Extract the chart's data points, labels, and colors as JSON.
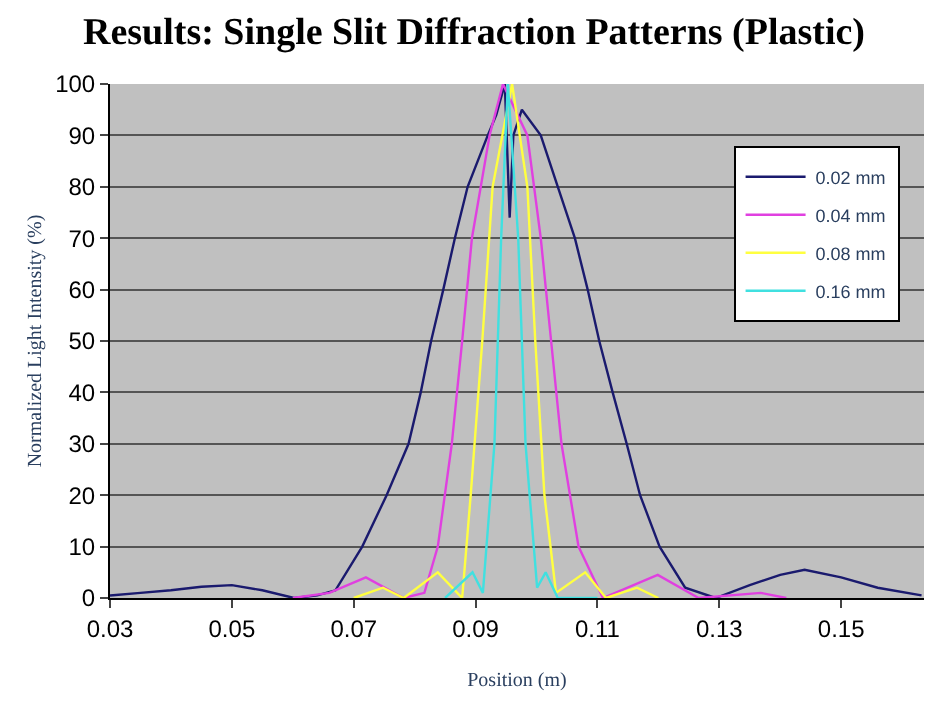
{
  "chart_data": {
    "type": "line",
    "title": "Results: Single Slit Diffraction Patterns (Plastic)",
    "xlabel": "Position (m)",
    "ylabel": "Normalized Light Intensity (%)",
    "xlim": [
      0.03,
      0.1636
    ],
    "xticks": [
      {
        "value": 0.03,
        "label": "0.03"
      },
      {
        "value": 0.05,
        "label": "0.05"
      },
      {
        "value": 0.07,
        "label": "0.07"
      },
      {
        "value": 0.09,
        "label": "0.09"
      },
      {
        "value": 0.11,
        "label": "0.11"
      },
      {
        "value": 0.13,
        "label": "0.13"
      },
      {
        "value": 0.15,
        "label": "0.15"
      }
    ],
    "ylim": [
      0,
      100
    ],
    "yticks": [
      0,
      10,
      20,
      30,
      40,
      50,
      60,
      70,
      80,
      90,
      100
    ],
    "grid": "y",
    "legend": "top right",
    "marker": "none",
    "line_style": "solid",
    "series": [
      {
        "name": "0.02 mm",
        "color": "#1a1a6e",
        "x": [
          0.03,
          0.035,
          0.04,
          0.045,
          0.05,
          0.055,
          0.0602,
          0.064,
          0.067,
          0.0714,
          0.0754,
          0.079,
          0.081,
          0.0827,
          0.0847,
          0.0866,
          0.0887,
          0.092,
          0.0934,
          0.0948,
          0.0956,
          0.0962,
          0.0976,
          0.1007,
          0.1035,
          0.1063,
          0.1084,
          0.1103,
          0.1125,
          0.1148,
          0.117,
          0.1202,
          0.1244,
          0.1294,
          0.135,
          0.14,
          0.144,
          0.15,
          0.156,
          0.1632
        ],
        "values": [
          0.5,
          1,
          1.5,
          2.2,
          2.5,
          1.5,
          0,
          0.5,
          1.5,
          10,
          20,
          30,
          40,
          50,
          60,
          70,
          80,
          90,
          94,
          100,
          74,
          90,
          95,
          90,
          80,
          70,
          60,
          50,
          40,
          30,
          20,
          10,
          2,
          0,
          2.5,
          4.5,
          5.5,
          4,
          2,
          0.5
        ]
      },
      {
        "name": "0.04 mm",
        "color": "#e040e0",
        "x": [
          0.06,
          0.066,
          0.072,
          0.0782,
          0.0816,
          0.0838,
          0.0861,
          0.0878,
          0.0894,
          0.0923,
          0.0945,
          0.0985,
          0.1007,
          0.1024,
          0.1041,
          0.1069,
          0.1109,
          0.1199,
          0.1266,
          0.1368,
          0.141
        ],
        "values": [
          0,
          1,
          4,
          0,
          1,
          10,
          30,
          50,
          70,
          90,
          100,
          90,
          70,
          50,
          30,
          10,
          0,
          4.5,
          0,
          1,
          0
        ]
      },
      {
        "name": "0.08 mm",
        "color": "#ffff40",
        "x": [
          0.07,
          0.0748,
          0.0782,
          0.0838,
          0.0878,
          0.0892,
          0.0911,
          0.0928,
          0.096,
          0.0985,
          0.0998,
          0.1013,
          0.1032,
          0.108,
          0.1114,
          0.1165,
          0.12
        ],
        "values": [
          0,
          2,
          0,
          5,
          0,
          20,
          50,
          80,
          100,
          80,
          50,
          20,
          1,
          5,
          0,
          2,
          0
        ]
      },
      {
        "name": "0.16 mm",
        "color": "#40e0e0",
        "x": [
          0.085,
          0.0895,
          0.0912,
          0.0931,
          0.0942,
          0.0953,
          0.097,
          0.0982,
          0.1001,
          0.1015,
          0.1035,
          0.11
        ],
        "values": [
          0,
          5,
          1,
          30,
          70,
          100,
          70,
          30,
          2,
          5,
          0,
          0
        ]
      }
    ]
  }
}
